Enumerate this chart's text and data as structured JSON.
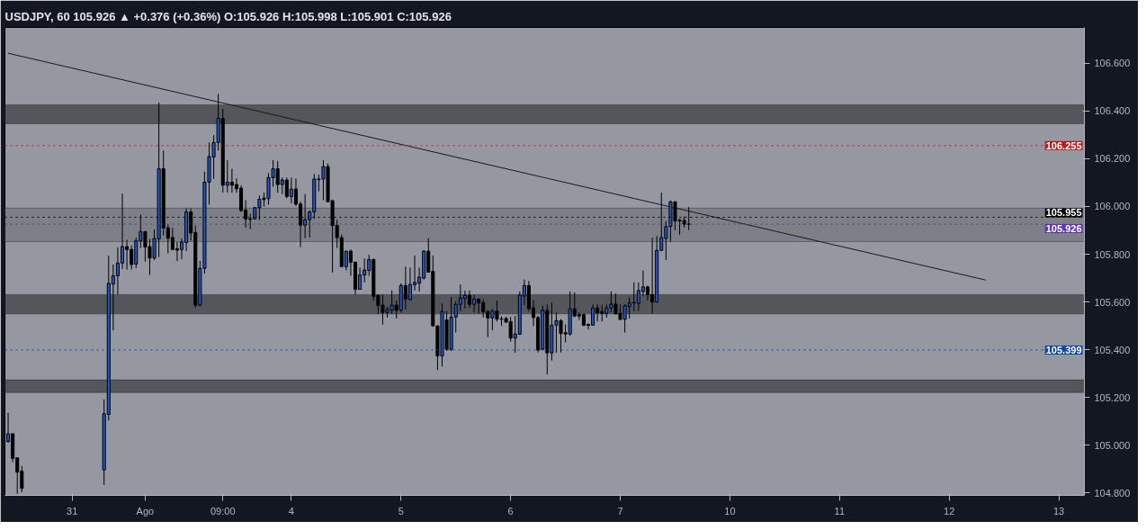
{
  "chart_data": {
    "type": "candlestick",
    "title": "USDJPY, 60  105.926 ▲ +0.376 (+0.36%)  O:105.926  H:105.998  L:105.901  C:105.926",
    "categories": [
      null,
      null,
      null,
      null,
      null,
      null,
      null,
      null,
      null,
      null,
      null,
      null,
      null,
      null,
      "31",
      null,
      null,
      null,
      null,
      null,
      null,
      null,
      null,
      null,
      null,
      null,
      null,
      null,
      null,
      null,
      "Ago",
      null,
      null,
      null,
      null,
      null,
      null,
      null,
      null,
      null,
      null,
      null,
      null,
      null,
      null,
      null,
      null,
      "09:00",
      null,
      null,
      null,
      null,
      null,
      null,
      null,
      null,
      null,
      null,
      null,
      null,
      null,
      null,
      "4",
      null,
      null,
      null,
      null,
      null,
      null,
      null,
      null,
      null,
      null,
      null,
      null,
      null,
      null,
      null,
      null,
      null,
      null,
      null,
      null,
      null,
      null,
      null,
      "5",
      null,
      null,
      null,
      null,
      null,
      null,
      null,
      null,
      null,
      null,
      null,
      null,
      null,
      null,
      null,
      null,
      null,
      null,
      null,
      null,
      null,
      null,
      null,
      "6",
      null,
      null,
      null,
      null,
      null,
      null,
      null,
      null,
      null,
      null,
      null,
      null,
      null,
      null,
      null,
      null,
      null,
      null,
      null,
      null,
      null,
      null,
      null,
      "7",
      null,
      null,
      null,
      null,
      null,
      null,
      null,
      null,
      null,
      null,
      null,
      null,
      null,
      null,
      null,
      null,
      null,
      null,
      null,
      null,
      null,
      null,
      null,
      "10",
      null,
      null,
      null,
      null,
      null,
      null,
      null,
      null,
      null,
      null,
      null,
      null,
      null,
      null,
      null,
      null,
      null,
      null,
      null,
      null,
      null,
      null,
      null,
      "11",
      null,
      null,
      null,
      null,
      null,
      null,
      null,
      null,
      null,
      null,
      null,
      null,
      null,
      null,
      null,
      null,
      null,
      null,
      null,
      null,
      null,
      null,
      null,
      "12",
      null,
      null,
      null,
      null,
      null,
      null,
      null,
      null,
      null,
      null,
      null,
      null,
      null,
      null,
      null,
      null,
      null,
      null,
      null,
      null,
      null,
      null,
      null,
      "13",
      null,
      null,
      null,
      null,
      null
    ],
    "ohlc": [
      [
        105.016,
        105.136,
        105.01,
        105.048
      ],
      [
        105.048,
        105.05,
        104.929,
        104.945
      ],
      [
        104.947,
        104.95,
        104.797,
        104.887
      ],
      [
        104.891,
        104.913,
        104.803,
        104.819
      ],
      null,
      null,
      null,
      null,
      null,
      null,
      null,
      null,
      null,
      null,
      null,
      null,
      null,
      null,
      null,
      null,
      null,
      [
        104.897,
        105.192,
        104.834,
        105.132
      ],
      [
        105.129,
        105.794,
        105.104,
        105.678
      ],
      [
        105.675,
        105.757,
        105.481,
        105.71
      ],
      [
        105.71,
        105.828,
        105.631,
        105.763
      ],
      [
        105.763,
        106.054,
        105.738,
        105.832
      ],
      [
        105.832,
        105.861,
        105.736,
        105.82
      ],
      [
        105.82,
        105.838,
        105.736,
        105.757
      ],
      [
        105.759,
        105.87,
        105.742,
        105.857
      ],
      [
        105.857,
        105.966,
        105.826,
        105.895
      ],
      [
        105.895,
        105.895,
        105.769,
        105.83
      ],
      [
        105.832,
        105.864,
        105.713,
        105.784
      ],
      [
        105.784,
        105.904,
        105.776,
        105.866
      ],
      [
        105.864,
        106.435,
        105.788,
        106.158
      ],
      [
        106.158,
        106.234,
        105.879,
        105.91
      ],
      [
        105.911,
        105.926,
        105.803,
        105.867
      ],
      [
        105.87,
        105.911,
        105.818,
        105.82
      ],
      [
        105.823,
        105.851,
        105.772,
        105.817
      ],
      [
        105.82,
        105.866,
        105.779,
        105.851
      ],
      [
        105.849,
        105.992,
        105.813,
        105.977
      ],
      [
        105.977,
        105.992,
        105.857,
        105.889
      ],
      [
        105.891,
        105.92,
        105.575,
        105.587
      ],
      [
        105.587,
        105.772,
        105.581,
        105.741
      ],
      [
        105.741,
        106.146,
        105.719,
        106.102
      ],
      [
        106.102,
        106.268,
        106.008,
        106.209
      ],
      [
        106.207,
        106.299,
        106.115,
        106.268
      ],
      [
        106.268,
        106.472,
        106.234,
        106.369
      ],
      [
        106.369,
        106.409,
        106.058,
        106.089
      ],
      [
        106.089,
        106.194,
        106.058,
        106.102
      ],
      [
        106.102,
        106.158,
        106.058,
        106.089
      ],
      [
        106.092,
        106.118,
        106.058,
        106.074
      ],
      [
        106.077,
        106.089,
        105.977,
        105.983
      ],
      [
        105.985,
        106.027,
        105.911,
        105.948
      ],
      [
        105.949,
        105.97,
        105.905,
        105.946
      ],
      [
        105.948,
        105.998,
        105.948,
        105.995
      ],
      [
        105.995,
        106.046,
        105.943,
        106.03
      ],
      [
        106.035,
        106.058,
        106.0,
        106.029
      ],
      [
        106.033,
        106.14,
        106.008,
        106.121
      ],
      [
        106.121,
        106.194,
        106.083,
        106.158
      ],
      [
        106.158,
        106.19,
        106.058,
        106.092
      ],
      [
        106.092,
        106.121,
        106.052,
        106.111
      ],
      [
        106.111,
        106.121,
        106.035,
        106.042
      ],
      [
        106.042,
        106.121,
        106.014,
        106.073
      ],
      [
        106.073,
        106.117,
        106.002,
        106.01
      ],
      [
        106.01,
        106.02,
        105.83,
        105.922
      ],
      [
        105.922,
        106.052,
        105.867,
        105.945
      ],
      [
        105.945,
        105.983,
        105.87,
        105.977
      ],
      [
        105.977,
        106.136,
        105.948,
        106.115
      ],
      [
        106.115,
        106.133,
        106.064,
        106.112
      ],
      [
        106.115,
        106.194,
        106.027,
        106.167
      ],
      [
        106.167,
        106.18,
        106.02,
        106.02
      ],
      [
        106.024,
        106.029,
        105.723,
        105.92
      ],
      [
        105.92,
        105.945,
        105.826,
        105.87
      ],
      [
        105.87,
        105.882,
        105.748,
        105.748
      ],
      [
        105.748,
        105.813,
        105.732,
        105.813
      ],
      [
        105.813,
        105.82,
        105.71,
        105.766
      ],
      [
        105.767,
        105.767,
        105.631,
        105.653
      ],
      [
        105.653,
        105.744,
        105.653,
        105.713
      ],
      [
        105.713,
        105.782,
        105.682,
        105.734
      ],
      [
        105.732,
        105.798,
        105.71,
        105.778
      ],
      [
        105.778,
        105.782,
        105.606,
        105.623
      ],
      [
        105.628,
        105.631,
        105.55,
        105.585
      ],
      [
        105.587,
        105.631,
        105.506,
        105.556
      ],
      [
        105.556,
        105.581,
        105.535,
        105.569
      ],
      [
        105.566,
        105.648,
        105.55,
        105.587
      ],
      [
        105.587,
        105.606,
        105.531,
        105.565
      ],
      [
        105.566,
        105.678,
        105.556,
        105.669
      ],
      [
        105.669,
        105.748,
        105.569,
        105.613
      ],
      [
        105.61,
        105.744,
        105.606,
        105.673
      ],
      [
        105.672,
        105.794,
        105.648,
        105.682
      ],
      [
        105.679,
        105.744,
        105.644,
        105.704
      ],
      [
        105.7,
        105.817,
        105.694,
        105.813
      ],
      [
        105.813,
        105.867,
        105.723,
        105.725
      ],
      [
        105.728,
        105.794,
        105.5,
        105.5
      ],
      [
        105.5,
        105.5,
        105.315,
        105.374
      ],
      [
        105.374,
        105.594,
        105.33,
        105.56
      ],
      [
        105.525,
        105.562,
        105.395,
        105.402
      ],
      [
        105.402,
        105.621,
        105.395,
        105.537
      ],
      [
        105.537,
        105.603,
        105.472,
        105.59
      ],
      [
        105.59,
        105.673,
        105.562,
        105.616
      ],
      [
        105.615,
        105.648,
        105.572,
        105.628
      ],
      [
        105.628,
        105.648,
        105.575,
        105.59
      ],
      [
        105.59,
        105.628,
        105.556,
        105.612
      ],
      [
        105.612,
        105.615,
        105.552,
        105.596
      ],
      [
        105.597,
        105.612,
        105.535,
        105.56
      ],
      [
        105.56,
        105.565,
        105.453,
        105.533
      ],
      [
        105.533,
        105.571,
        105.481,
        105.562
      ],
      [
        105.562,
        105.606,
        105.518,
        105.528
      ],
      [
        105.53,
        105.54,
        105.5,
        105.528
      ],
      [
        105.531,
        105.537,
        105.512,
        105.516
      ],
      [
        105.518,
        105.537,
        105.434,
        105.449
      ],
      [
        105.449,
        105.541,
        105.387,
        105.466
      ],
      [
        105.465,
        105.644,
        105.462,
        105.628
      ],
      [
        105.625,
        105.694,
        105.587,
        105.669
      ],
      [
        105.669,
        105.688,
        105.56,
        105.572
      ],
      [
        105.575,
        105.609,
        105.5,
        105.535
      ],
      [
        105.535,
        105.541,
        105.389,
        105.399
      ],
      [
        105.402,
        105.585,
        105.397,
        105.565
      ],
      [
        105.565,
        105.59,
        105.296,
        105.387
      ],
      [
        105.387,
        105.597,
        105.355,
        105.503
      ],
      [
        105.503,
        105.556,
        105.387,
        105.522
      ],
      [
        105.522,
        105.528,
        105.389,
        105.468
      ],
      [
        105.471,
        105.506,
        105.431,
        105.466
      ],
      [
        105.466,
        105.644,
        105.459,
        105.571
      ],
      [
        105.571,
        105.64,
        105.537,
        105.541
      ],
      [
        105.547,
        105.556,
        105.525,
        105.541
      ],
      [
        105.547,
        105.55,
        105.5,
        105.502
      ],
      [
        105.506,
        105.51,
        105.485,
        105.502
      ],
      [
        105.503,
        105.59,
        105.503,
        105.575
      ],
      [
        105.575,
        105.59,
        105.518,
        105.554
      ],
      [
        105.56,
        105.587,
        105.518,
        105.552
      ],
      [
        105.552,
        105.59,
        105.535,
        105.575
      ],
      [
        105.575,
        105.644,
        105.556,
        105.591
      ],
      [
        105.591,
        105.635,
        105.55,
        105.55
      ],
      [
        105.552,
        105.59,
        105.525,
        105.527
      ],
      [
        105.527,
        105.59,
        105.472,
        105.584
      ],
      [
        105.581,
        105.619,
        105.531,
        105.596
      ],
      [
        105.596,
        105.682,
        105.562,
        105.598
      ],
      [
        105.594,
        105.682,
        105.562,
        105.648
      ],
      [
        105.644,
        105.732,
        105.625,
        105.663
      ],
      [
        105.663,
        105.669,
        105.606,
        105.631
      ],
      [
        105.631,
        105.87,
        105.55,
        105.6
      ],
      [
        105.6,
        105.876,
        105.597,
        105.816
      ],
      [
        105.816,
        106.058,
        105.813,
        105.87
      ],
      [
        105.866,
        105.939,
        105.776,
        105.916
      ],
      [
        105.916,
        106.024,
        105.853,
        106.02
      ],
      [
        106.02,
        106.02,
        105.901,
        105.939
      ],
      [
        105.939,
        105.949,
        105.882,
        105.943
      ],
      [
        105.941,
        105.958,
        105.911,
        105.926
      ],
      [
        105.926,
        105.998,
        105.901,
        105.926
      ],
      null,
      null,
      null,
      null,
      null,
      null,
      null,
      null,
      null,
      null,
      null,
      null,
      null,
      null,
      null,
      null,
      null,
      null,
      null,
      null,
      null,
      null,
      null,
      null,
      null,
      null,
      null,
      null,
      null,
      null,
      null,
      null,
      null,
      null,
      null,
      null,
      null,
      null,
      null,
      null,
      null,
      null,
      null,
      null,
      null,
      null,
      null,
      null,
      null,
      null,
      null,
      null,
      null,
      null,
      null,
      null,
      null,
      null,
      null,
      null,
      null,
      null,
      null,
      null,
      null,
      null,
      null,
      null,
      null,
      null,
      null,
      null,
      null,
      null,
      null,
      null,
      null,
      null,
      null,
      null,
      null,
      null,
      null,
      null,
      null,
      null
    ],
    "series": [
      {
        "type": "line",
        "color": "#1a1a1a",
        "values": [
          106.642,
          null,
          null,
          null,
          null,
          null,
          null,
          null,
          null,
          null,
          null,
          null,
          null,
          null,
          null,
          null,
          null,
          null,
          null,
          null,
          null,
          null,
          null,
          null,
          null,
          null,
          null,
          null,
          null,
          null,
          null,
          null,
          null,
          null,
          null,
          null,
          null,
          null,
          null,
          null,
          null,
          null,
          null,
          null,
          null,
          null,
          null,
          null,
          null,
          null,
          null,
          null,
          null,
          null,
          null,
          null,
          null,
          null,
          null,
          null,
          null,
          null,
          null,
          null,
          null,
          null,
          null,
          null,
          null,
          null,
          null,
          null,
          null,
          null,
          null,
          null,
          null,
          null,
          null,
          null,
          null,
          null,
          null,
          null,
          null,
          null,
          null,
          null,
          null,
          null,
          null,
          null,
          null,
          null,
          null,
          null,
          null,
          null,
          null,
          null,
          null,
          null,
          null,
          null,
          null,
          null,
          null,
          null,
          null,
          null,
          null,
          null,
          null,
          null,
          null,
          null,
          null,
          null,
          null,
          null,
          null,
          null,
          null,
          null,
          null,
          null,
          null,
          null,
          null,
          null,
          null,
          null,
          null,
          null,
          null,
          null,
          null,
          null,
          null,
          null,
          null,
          null,
          null,
          null,
          null,
          null,
          null,
          null,
          null,
          null,
          null,
          null,
          null,
          null,
          null,
          null,
          null,
          null,
          null,
          null,
          null,
          null,
          null,
          null,
          null,
          null,
          null,
          null,
          null,
          null,
          null,
          null,
          null,
          null,
          null,
          null,
          null,
          null,
          null,
          null,
          null,
          null,
          null,
          null,
          null,
          null,
          null,
          null,
          null,
          null,
          null,
          null,
          null,
          null,
          null,
          null,
          null,
          null,
          null,
          null,
          null,
          null,
          null,
          null,
          null,
          null,
          null,
          null,
          null,
          null,
          null,
          null,
          null,
          null,
          105.692,
          null,
          null,
          null,
          null,
          null,
          null,
          null,
          null,
          null,
          null,
          null,
          null,
          null,
          null,
          null,
          null,
          null,
          null,
          null,
          null,
          null
        ]
      }
    ],
    "bands": [
      {
        "axis": "y",
        "from": 106.347,
        "to": 106.426,
        "color": "#54565c"
      },
      {
        "axis": "y",
        "from": 105.853,
        "to": 105.993,
        "color": "#7e8088"
      },
      {
        "axis": "y",
        "from": 105.55,
        "to": 105.631,
        "color": "#54565c"
      },
      {
        "axis": "y",
        "from": 105.221,
        "to": 105.274,
        "color": "#54565c"
      }
    ],
    "ref_lines": [
      {
        "axis": "y",
        "value": 106.255,
        "label": "106.255",
        "color": "#b71c1c",
        "line_style": "dotted"
      },
      {
        "axis": "y",
        "value": 105.955,
        "label": "105.955",
        "color": "#000000",
        "line_style": "dotted"
      },
      {
        "axis": "y",
        "value": 105.926,
        "label": "105.926",
        "color": "#5e35b1",
        "line_style": "dotted"
      },
      {
        "axis": "y",
        "value": 105.399,
        "label": "105.399",
        "color": "#0d47a1",
        "line_style": "dotted"
      }
    ],
    "ylim": [
      104.79,
      106.75
    ],
    "yticks": [
      {
        "value": 104.8,
        "label": "104.800"
      },
      {
        "value": 105.0,
        "label": "105.000"
      },
      {
        "value": 105.2,
        "label": "105.200"
      },
      {
        "value": 105.4,
        "label": "105.400"
      },
      {
        "value": 105.6,
        "label": "105.600"
      },
      {
        "value": 105.8,
        "label": "105.800"
      },
      {
        "value": 106.0,
        "label": "106.000"
      },
      {
        "value": 106.2,
        "label": "106.200"
      },
      {
        "value": 106.4,
        "label": "106.400"
      },
      {
        "value": 106.6,
        "label": "106.600"
      }
    ],
    "grid": false
  }
}
